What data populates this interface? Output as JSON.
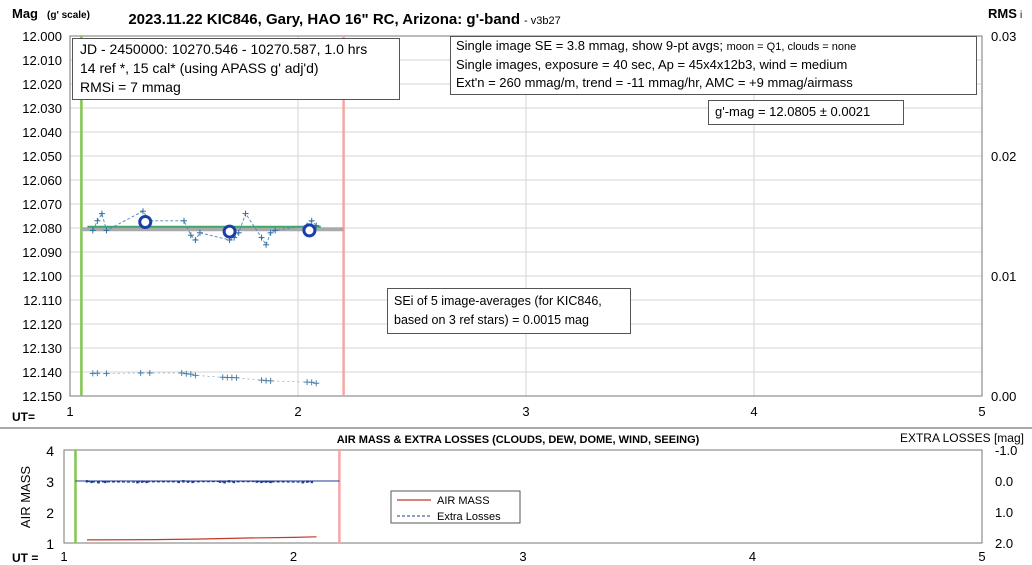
{
  "chart_data": [
    {
      "type": "scatter",
      "title": "2023.11.22 KIC846, Gary, HAO 16\" RC, Arizona: g'-band",
      "version": "- v3b27",
      "ylabel_main": "Mag",
      "ylabel_sub": "(g' scale)",
      "y2label_main": "RMS",
      "y2label_sub": "i",
      "xlabel": "UT=",
      "xlim": [
        1,
        5
      ],
      "ylim": [
        12.15,
        12.0
      ],
      "y2lim": [
        0.0,
        0.03
      ],
      "x_ticks": [
        "1",
        "2",
        "3",
        "4",
        "5"
      ],
      "y_ticks": [
        "12.000",
        "12.010",
        "12.020",
        "12.030",
        "12.040",
        "12.050",
        "12.060",
        "12.070",
        "12.080",
        "12.090",
        "12.100",
        "12.110",
        "12.120",
        "12.130",
        "12.140",
        "12.150"
      ],
      "y2_ticks": [
        "0.03",
        "0.02",
        "0.01",
        "0.00"
      ],
      "grid": true,
      "vlines": [
        {
          "x": 1.05,
          "color": "#7fc74f"
        },
        {
          "x": 2.2,
          "color": "#f4a6a8"
        }
      ],
      "hline": {
        "y": 12.0805,
        "x_range": [
          1.05,
          2.2
        ]
      },
      "series": [
        {
          "x": [
            1.1,
            1.12,
            1.14,
            1.16,
            1.32,
            1.35,
            1.5,
            1.53,
            1.55,
            1.57,
            1.7,
            1.72,
            1.74,
            1.77,
            1.84,
            1.86,
            1.88,
            1.9,
            2.04,
            2.06,
            2.08
          ],
          "y": [
            12.081,
            12.077,
            12.074,
            12.081,
            12.073,
            12.077,
            12.077,
            12.083,
            12.085,
            12.082,
            12.085,
            12.084,
            12.082,
            12.074,
            12.084,
            12.087,
            12.082,
            12.081,
            12.079,
            12.077,
            12.079
          ]
        },
        {
          "x": [
            1.33,
            1.7,
            2.05
          ],
          "y": [
            12.0775,
            12.0815,
            12.081
          ]
        },
        {
          "x": [
            1.1,
            1.12,
            1.16,
            1.31,
            1.35,
            1.49,
            1.51,
            1.53,
            1.55,
            1.67,
            1.69,
            1.71,
            1.73,
            1.84,
            1.86,
            1.88,
            2.04,
            2.06,
            2.08
          ],
          "y": [
            12.1406,
            12.1405,
            12.1406,
            12.1404,
            12.1404,
            12.1404,
            12.1407,
            12.1409,
            12.1414,
            12.1422,
            12.1423,
            12.1423,
            12.1424,
            12.1434,
            12.1436,
            12.1437,
            12.1442,
            12.1443,
            12.1447
          ]
        }
      ],
      "annotations": {
        "top_left": [
          "JD - 2450000: 10270.546 - 10270.587, 1.0 hrs",
          "14 ref *, 15 cal* (using APASS g' adj'd)",
          "RMSi = 7 mmag"
        ],
        "top_right": [
          {
            "main": "Single image SE = 3.8 mmag, show  9-pt avgs; ",
            "small": "moon = Q1, clouds = none"
          },
          {
            "main": "Single images, exposure = 40 sec, Ap = 45x4x12b3, wind = medium",
            "small": ""
          },
          {
            "main": "Ext'n = 260 mmag/m, trend = -11 mmag/hr, AMC = +9 mmag/airmass",
            "small": ""
          }
        ],
        "mag_result": "g'-mag = 12.0805 ± 0.0021",
        "sei_note": [
          "SEi of 5 image-averages (for KIC846,",
          "based on 3 ref stars) = 0.0015 mag"
        ]
      }
    },
    {
      "type": "line",
      "title": "AIR MASS & EXTRA LOSSES (CLOUDS, DEW, DOME, WIND, SEEING)",
      "ylabel": "AIR MASS",
      "y2label": "EXTRA LOSSES [mag]",
      "xlabel": "UT =",
      "xlim": [
        1,
        5
      ],
      "ylim": [
        1,
        4
      ],
      "y2lim": [
        2.0,
        -1.0
      ],
      "x_ticks": [
        "1",
        "2",
        "3",
        "4",
        "5"
      ],
      "y_ticks": [
        "4",
        "3",
        "2",
        "1"
      ],
      "y2_ticks": [
        "-1.0",
        "0.0",
        "1.0",
        "2.0"
      ],
      "vlines": [
        {
          "x": 1.05,
          "color": "#7fc74f"
        },
        {
          "x": 2.2,
          "color": "#f4a6a8"
        }
      ],
      "series": [
        {
          "name": "AIR MASS",
          "color": "#c0392b",
          "x": [
            1.1,
            1.4,
            1.6,
            1.8,
            2.0,
            2.1
          ],
          "y": [
            1.1,
            1.11,
            1.13,
            1.16,
            1.18,
            1.2
          ]
        },
        {
          "name": "Extra Losses",
          "color": "#1f3a93",
          "x": [
            1.1,
            1.12,
            1.15,
            1.18,
            1.32,
            1.34,
            1.36,
            1.5,
            1.52,
            1.54,
            1.56,
            1.68,
            1.7,
            1.72,
            1.74,
            1.84,
            1.86,
            1.88,
            1.9,
            2.04,
            2.06,
            2.08
          ],
          "y": [
            0.01,
            0.03,
            0.04,
            0.03,
            0.04,
            0.02,
            0.03,
            0.03,
            0.01,
            0.02,
            0.03,
            0.02,
            0.04,
            0.01,
            0.03,
            0.02,
            0.03,
            0.02,
            0.03,
            0.04,
            0.02,
            0.03
          ]
        }
      ]
    }
  ]
}
